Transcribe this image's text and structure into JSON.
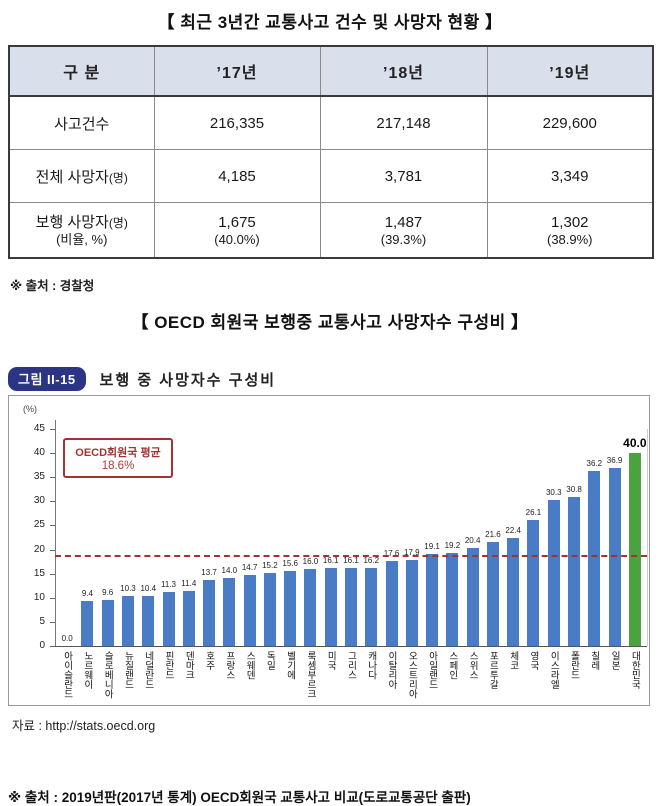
{
  "page": {
    "table_title": "【 최근 3년간 교통사고 건수 및 사망자 현황 】",
    "table_source": "※ 출처 : 경찰청",
    "chart_section_title": "【 OECD 회원국 보행중 교통사고 사망자수 구성비 】",
    "figure_badge": "그림 II-15",
    "chart_source": "자료 : http://stats.oecd.org",
    "bottom_source": "※ 출처 : 2019년판(2017년 통계) OECD회원국 교통사고 비교(도로교통공단 출판)"
  },
  "table": {
    "columns": [
      "구  분",
      "’17년",
      "’18년",
      "’19년"
    ],
    "rows": [
      {
        "label": "사고건수",
        "values": [
          "216,335",
          "217,148",
          "229,600"
        ]
      },
      {
        "label": "전체 사망자",
        "paren": "(명)",
        "values": [
          "4,185",
          "3,781",
          "3,349"
        ]
      },
      {
        "label": "보행 사망자",
        "paren": "(명)",
        "sublabel": "(비율, %)",
        "values": [
          "1,675",
          "1,487",
          "1,302"
        ],
        "sub_values": [
          "(40.0%)",
          "(39.3%)",
          "(38.9%)"
        ]
      }
    ]
  },
  "chart_data": {
    "type": "bar",
    "title": "보행 중 사망자수 구성비",
    "unit_label": "(%)",
    "categories": [
      "아이슬란드",
      "노르웨이",
      "슬로베니아",
      "뉴질랜드",
      "네덜란드",
      "핀란드",
      "덴마크",
      "호주",
      "프랑스",
      "스웨덴",
      "독일",
      "벨기에",
      "룩셈부르크",
      "미국",
      "그리스",
      "캐나다",
      "이탈리아",
      "오스트리아",
      "아일랜드",
      "스페인",
      "스위스",
      "포르투갈",
      "체코",
      "영국",
      "이스라엘",
      "폴란드",
      "칠레",
      "일본",
      "대한민국"
    ],
    "values": [
      0.0,
      9.4,
      9.6,
      10.3,
      10.4,
      11.3,
      11.4,
      13.7,
      14.0,
      14.7,
      15.2,
      15.6,
      16.0,
      16.1,
      16.1,
      16.2,
      17.6,
      17.9,
      19.1,
      19.2,
      20.4,
      21.6,
      22.4,
      26.1,
      30.3,
      30.8,
      36.2,
      36.9,
      40.0
    ],
    "value_labels": [
      "0.0",
      "9.4",
      "9.6",
      "10.3",
      "10.4",
      "11.3",
      "11.4",
      "13.7",
      "14.0",
      "14.7",
      "15.2",
      "15.6",
      "16.0",
      "16.1",
      "16.1",
      "16.2",
      "17.6",
      "17.9",
      "19.1",
      "19.2",
      "20.4",
      "21.6",
      "22.4",
      "26.1",
      "30.3",
      "30.8",
      "36.2",
      "36.9",
      "40.0"
    ],
    "highlight_index": 28,
    "bar_color": "#4a7cc5",
    "highlight_color": "#4aa33c",
    "average_line": {
      "value": 18.6,
      "label_title": "OECD회원국 평균",
      "label_value": "18.6%",
      "color": "#9e3434"
    },
    "ylim": [
      0,
      45
    ],
    "yticks": [
      45,
      40,
      35,
      30,
      25,
      20,
      15,
      10,
      5,
      0
    ],
    "grid": false,
    "legend": "none"
  }
}
